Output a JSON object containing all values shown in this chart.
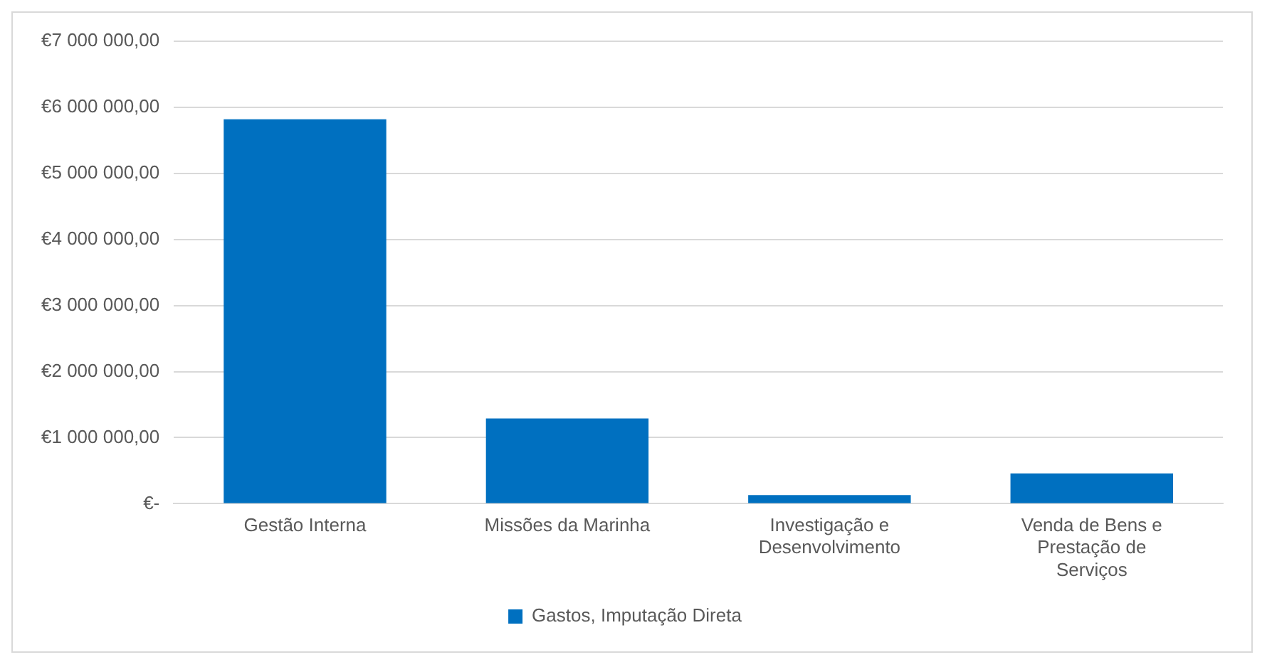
{
  "chart_data": {
    "type": "bar",
    "categories": [
      "Gestão Interna",
      "Missões da Marinha",
      "Investigação e Desenvolvimento",
      "Venda de Bens e Prestação de Serviços"
    ],
    "series": [
      {
        "name": "Gastos, Imputação Direta",
        "color": "#0070c0",
        "values": [
          5820000,
          1290000,
          130000,
          460000
        ]
      }
    ],
    "ylim": [
      0,
      7000000
    ],
    "yticks": [
      {
        "value": 0,
        "label": "€-"
      },
      {
        "value": 1000000,
        "label": "€1 000 000,00"
      },
      {
        "value": 2000000,
        "label": "€2 000 000,00"
      },
      {
        "value": 3000000,
        "label": "€3 000 000,00"
      },
      {
        "value": 4000000,
        "label": "€4 000 000,00"
      },
      {
        "value": 5000000,
        "label": "€5 000 000,00"
      },
      {
        "value": 6000000,
        "label": "€6 000 000,00"
      },
      {
        "value": 7000000,
        "label": "€7 000 000,00"
      }
    ],
    "grid": "y",
    "legend": "bottom"
  }
}
